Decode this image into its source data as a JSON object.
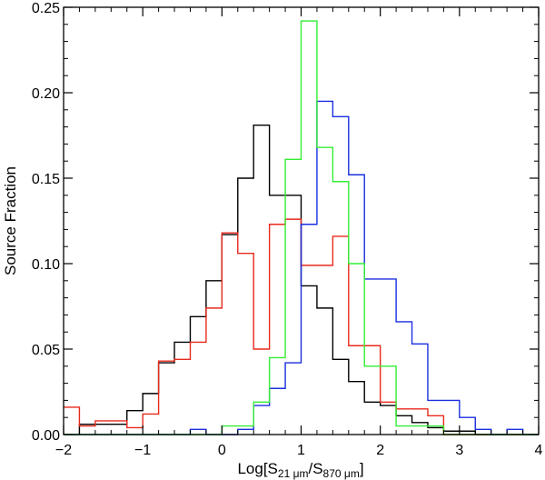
{
  "chart_data": {
    "type": "histogram",
    "xlabel": {
      "prefix": "Log[S",
      "sub1": "21 μm",
      "mid": "/S",
      "sub2": "870 μm",
      "suffix": "]"
    },
    "ylabel": "Source Fraction",
    "xlim": [
      -2,
      4
    ],
    "ylim": [
      0,
      0.25
    ],
    "xticks": [
      "−2",
      "−1",
      "0",
      "1",
      "2",
      "3",
      "4"
    ],
    "yticks": [
      "0.00",
      "0.05",
      "0.10",
      "0.15",
      "0.20",
      "0.25"
    ],
    "bin_edges": [
      -2.0,
      -1.8,
      -1.6,
      -1.4,
      -1.2,
      -1.0,
      -0.8,
      -0.6,
      -0.4,
      -0.2,
      0.0,
      0.2,
      0.4,
      0.6,
      0.8,
      1.0,
      1.2,
      1.4,
      1.6,
      1.8,
      2.0,
      2.2,
      2.4,
      2.6,
      2.8,
      3.0,
      3.2,
      3.4,
      3.6,
      3.8,
      4.0
    ],
    "series": [
      {
        "color": "#000000",
        "values": [
          0.0,
          0.006,
          0.006,
          0.006,
          0.014,
          0.024,
          0.042,
          0.054,
          0.069,
          0.09,
          0.117,
          0.15,
          0.181,
          0.14,
          0.14,
          0.087,
          0.074,
          0.044,
          0.031,
          0.019,
          0.017,
          0.011,
          0.007,
          0.004,
          0.002,
          0.002,
          0.0,
          0.0,
          0.0,
          0.0
        ]
      },
      {
        "color": "#e8291c",
        "values": [
          0.016,
          0.005,
          0.008,
          0.008,
          0.004,
          0.012,
          0.043,
          0.044,
          0.054,
          0.074,
          0.118,
          0.106,
          0.05,
          0.123,
          0.126,
          0.099,
          0.099,
          0.116,
          0.052,
          0.052,
          0.019,
          0.015,
          0.015,
          0.011,
          0.0,
          0.0,
          0.0,
          0.0,
          0.0,
          0.0
        ]
      },
      {
        "color": "#1a2fe0",
        "values": [
          0.0,
          0.0,
          0.0,
          0.0,
          0.0,
          0.0,
          0.0,
          0.0,
          0.003,
          0.0,
          0.0,
          0.003,
          0.017,
          0.027,
          0.042,
          0.123,
          0.195,
          0.186,
          0.152,
          0.091,
          0.091,
          0.066,
          0.053,
          0.02,
          0.02,
          0.01,
          0.003,
          0.0,
          0.003,
          0.0
        ]
      },
      {
        "color": "#33ee33",
        "values": [
          0.0,
          0.0,
          0.0,
          0.0,
          0.0,
          0.0,
          0.0,
          0.0,
          0.0,
          0.0,
          0.005,
          0.005,
          0.019,
          0.045,
          0.161,
          0.242,
          0.168,
          0.148,
          0.1,
          0.04,
          0.04,
          0.005,
          0.005,
          0.005,
          0.0,
          0.0,
          0.0,
          0.0,
          0.0,
          0.0
        ]
      }
    ]
  }
}
